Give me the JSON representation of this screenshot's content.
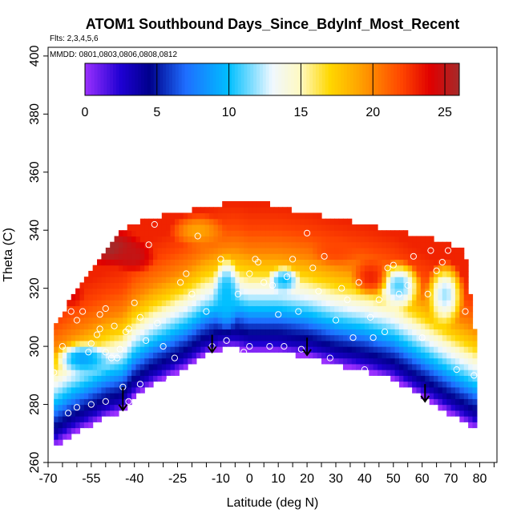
{
  "chart_data": {
    "type": "heatmap",
    "title": "ATOM1 Southbound Days_Since_BdyInf_Most_Recent",
    "flights_note": "Flts: 2,3,4,5,6",
    "dates_note": "MMDD: 0801,0803,0806,0808,0812",
    "xlabel": "Latitude (deg N)",
    "ylabel": "Theta (C)",
    "xlim": [
      -70,
      86
    ],
    "ylim": [
      260,
      403
    ],
    "x_tick_labels": [
      "-70",
      "-55",
      "-40",
      "-25",
      "-10",
      "0",
      "10",
      "20",
      "30",
      "40",
      "50",
      "60",
      "70",
      "80"
    ],
    "x_tick_values": [
      -70,
      -55,
      -40,
      -25,
      -10,
      0,
      10,
      20,
      30,
      40,
      50,
      60,
      70,
      80
    ],
    "x_minor_step": 5,
    "y_ticks": [
      260,
      280,
      300,
      320,
      340,
      360,
      380,
      400
    ],
    "colorbar": {
      "min": 0,
      "max": 26,
      "ticks": [
        0,
        5,
        10,
        15,
        20,
        25
      ],
      "stops": [
        {
          "v": 0,
          "c": "#9b30ff"
        },
        {
          "v": 2.5,
          "c": "#1e00d2"
        },
        {
          "v": 4.5,
          "c": "#00008b"
        },
        {
          "v": 7,
          "c": "#1e6eff"
        },
        {
          "v": 10,
          "c": "#00bfff"
        },
        {
          "v": 13,
          "c": "#f0f8ff"
        },
        {
          "v": 15,
          "c": "#fff9c0"
        },
        {
          "v": 17,
          "c": "#ffd700"
        },
        {
          "v": 19,
          "c": "#ffa500"
        },
        {
          "v": 22,
          "c": "#ff4500"
        },
        {
          "v": 24,
          "c": "#e00000"
        },
        {
          "v": 26,
          "c": "#a52a2a"
        }
      ]
    },
    "field": {
      "lat_range": [
        -68,
        79
      ],
      "bottom_boundary": [
        [
          -68,
          266
        ],
        [
          -62,
          270
        ],
        [
          -56,
          273
        ],
        [
          -50,
          276
        ],
        [
          -44,
          278
        ],
        [
          -40,
          283
        ],
        [
          -34,
          287
        ],
        [
          -28,
          290
        ],
        [
          -22,
          293
        ],
        [
          -16,
          297
        ],
        [
          -10,
          299.5
        ],
        [
          -5,
          300
        ],
        [
          0,
          298.5
        ],
        [
          10,
          298.5
        ],
        [
          20,
          297
        ],
        [
          30,
          294
        ],
        [
          40,
          292
        ],
        [
          50,
          289
        ],
        [
          60,
          283
        ],
        [
          70,
          277
        ],
        [
          79,
          272
        ]
      ],
      "top_boundary": [
        [
          -68,
          305
        ],
        [
          -62,
          316
        ],
        [
          -56,
          324
        ],
        [
          -50,
          333
        ],
        [
          -44,
          339
        ],
        [
          -38,
          342
        ],
        [
          -30,
          344
        ],
        [
          -20,
          346
        ],
        [
          -10,
          348
        ],
        [
          -3,
          350
        ],
        [
          3,
          349
        ],
        [
          10,
          347
        ],
        [
          20,
          345
        ],
        [
          30,
          343
        ],
        [
          40,
          341
        ],
        [
          50,
          339
        ],
        [
          60,
          337
        ],
        [
          70,
          334
        ],
        [
          75,
          332
        ],
        [
          79,
          300
        ]
      ],
      "days_by_depth_above_bottom": [
        {
          "d": 0,
          "days": 0
        },
        {
          "d": 3,
          "days": 3
        },
        {
          "d": 6,
          "days": 4.5
        },
        {
          "d": 9,
          "days": 6
        },
        {
          "d": 13,
          "days": 9
        },
        {
          "d": 18,
          "days": 12
        },
        {
          "d": 22,
          "days": 14
        },
        {
          "d": 27,
          "days": 17
        },
        {
          "d": 34,
          "days": 20
        },
        {
          "d": 42,
          "days": 22
        },
        {
          "d": 50,
          "days": 23
        }
      ],
      "anomalies": [
        {
          "lat": -48,
          "theta": 334,
          "r_lat": 12,
          "r_theta": 7,
          "days": 26
        },
        {
          "lat": -40,
          "theta": 331,
          "r_lat": 8,
          "r_theta": 6,
          "days": 25
        },
        {
          "lat": -62,
          "theta": 318,
          "r_lat": 5,
          "r_theta": 5,
          "days": 24
        },
        {
          "lat": -8,
          "theta": 318,
          "r_lat": 5,
          "r_theta": 14,
          "days": 10
        },
        {
          "lat": 12,
          "theta": 323,
          "r_lat": 6,
          "r_theta": 5,
          "days": 10
        },
        {
          "lat": 52,
          "theta": 321,
          "r_lat": 8,
          "r_theta": 9,
          "days": 11
        },
        {
          "lat": 68,
          "theta": 318,
          "r_lat": 7,
          "r_theta": 12,
          "days": 12
        },
        {
          "lat": -58,
          "theta": 296,
          "r_lat": 10,
          "r_theta": 6,
          "days": 9
        },
        {
          "lat": 42,
          "theta": 324,
          "r_lat": 7,
          "r_theta": 7,
          "days": 23
        },
        {
          "lat": 30,
          "theta": 333,
          "r_lat": 9,
          "r_theta": 5,
          "days": 22
        },
        {
          "lat": -18,
          "theta": 340,
          "r_lat": 10,
          "r_theta": 6,
          "days": 19
        }
      ]
    },
    "observations": [
      [
        -68,
        291
      ],
      [
        -65,
        300
      ],
      [
        -62,
        312
      ],
      [
        -60,
        309
      ],
      [
        -58,
        312
      ],
      [
        -56,
        298
      ],
      [
        -55,
        301
      ],
      [
        -53,
        304
      ],
      [
        -52,
        306
      ],
      [
        -50,
        298
      ],
      [
        -48,
        296
      ],
      [
        -46,
        296
      ],
      [
        -45,
        299
      ],
      [
        -43,
        305
      ],
      [
        -42,
        306
      ],
      [
        -40,
        315
      ],
      [
        -38,
        310
      ],
      [
        -36,
        302
      ],
      [
        -35,
        335
      ],
      [
        -33,
        342
      ],
      [
        -32,
        308
      ],
      [
        -30,
        300
      ],
      [
        -28,
        288
      ],
      [
        -26,
        296
      ],
      [
        -24,
        322
      ],
      [
        -22,
        325
      ],
      [
        -20,
        318
      ],
      [
        -18,
        338
      ],
      [
        -15,
        312
      ],
      [
        -13,
        300
      ],
      [
        -10,
        330
      ],
      [
        -8,
        302
      ],
      [
        -6,
        296
      ],
      [
        -4,
        318
      ],
      [
        -2,
        298
      ],
      [
        0,
        300
      ],
      [
        0,
        325
      ],
      [
        2,
        330
      ],
      [
        3,
        329
      ],
      [
        5,
        322
      ],
      [
        7,
        300
      ],
      [
        8,
        321
      ],
      [
        10,
        311
      ],
      [
        12,
        300
      ],
      [
        13,
        324
      ],
      [
        15,
        330
      ],
      [
        17,
        312
      ],
      [
        18,
        299
      ],
      [
        20,
        339
      ],
      [
        22,
        327
      ],
      [
        24,
        319
      ],
      [
        26,
        331
      ],
      [
        28,
        296
      ],
      [
        30,
        309
      ],
      [
        32,
        320
      ],
      [
        34,
        316
      ],
      [
        36,
        303
      ],
      [
        38,
        322
      ],
      [
        40,
        292
      ],
      [
        42,
        310
      ],
      [
        43,
        303
      ],
      [
        45,
        316
      ],
      [
        47,
        305
      ],
      [
        48,
        327
      ],
      [
        50,
        328
      ],
      [
        52,
        318
      ],
      [
        55,
        321
      ],
      [
        57,
        331
      ],
      [
        60,
        303
      ],
      [
        62,
        318
      ],
      [
        63,
        333
      ],
      [
        65,
        326
      ],
      [
        67,
        329
      ],
      [
        69,
        333
      ],
      [
        72,
        292
      ],
      [
        75,
        312
      ],
      [
        78,
        290
      ],
      [
        -60,
        279
      ],
      [
        -55,
        280
      ],
      [
        -50,
        281
      ],
      [
        -44,
        286
      ],
      [
        -38,
        287
      ],
      [
        -63,
        277
      ],
      [
        -42,
        281
      ],
      [
        -50,
        313
      ],
      [
        -47,
        307
      ],
      [
        -52,
        311
      ]
    ],
    "arrows": [
      {
        "lat": -44,
        "theta_from": 286,
        "theta_to": 278
      },
      {
        "lat": -13,
        "theta_from": 304,
        "theta_to": 298
      },
      {
        "lat": 20,
        "theta_from": 303,
        "theta_to": 297
      },
      {
        "lat": 61,
        "theta_from": 287,
        "theta_to": 281
      }
    ]
  }
}
